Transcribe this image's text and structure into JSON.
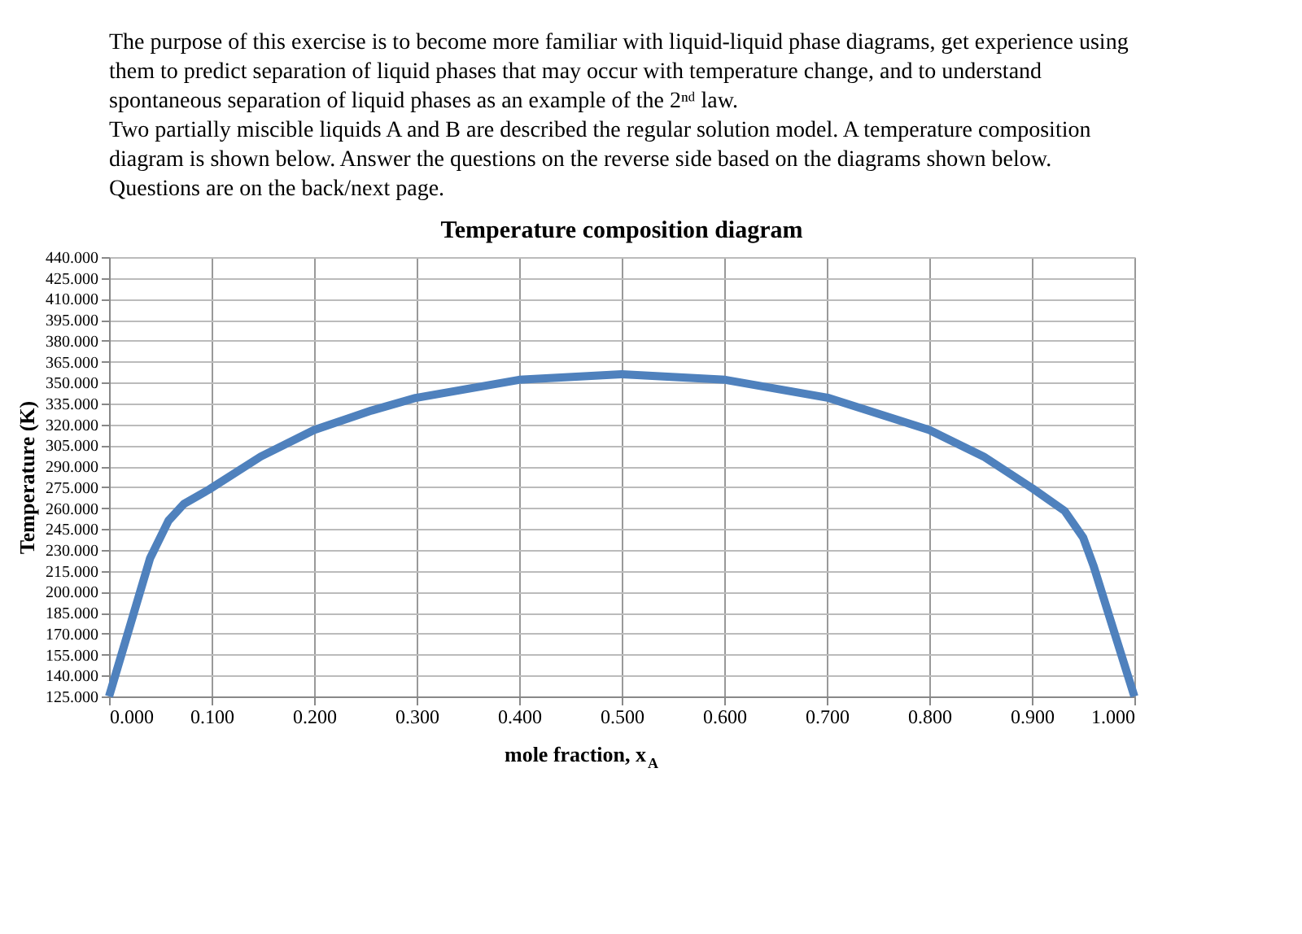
{
  "chart_data": {
    "type": "line",
    "title": "Temperature composition diagram",
    "xlabel": "mole fraction, x$_{A}$",
    "ylabel": "Temperature (K)",
    "annotations": [
      "The purpose of this exercise is to become more familiar with liquid-liquid phase diagrams, get experience using",
      "them to predict separation of liquid phases that may occur with temperature change, and to understand",
      "spontaneous separation of liquid phases as an example of the 2ⁿᵈ law.",
      "Two partially miscible liquids A and B are described the regular solution model.  A temperature composition",
      "diagram is shown below.  Answer the questions on the reverse side based on the diagrams shown below.",
      "Questions are on the back/next page."
    ],
    "x": [
      0.0,
      0.04,
      0.058,
      0.073,
      0.099,
      0.148,
      0.2,
      0.256,
      0.299,
      0.4,
      0.5,
      0.601,
      0.702,
      0.8,
      0.853,
      0.901,
      0.932,
      0.95,
      0.96,
      1.0
    ],
    "series": [
      {
        "color": "#4f81bd",
        "values": [
          125,
          224,
          251,
          263,
          274,
          297,
          316,
          330,
          339,
          352,
          356,
          352,
          339,
          316,
          297,
          274,
          258,
          239,
          219,
          125
        ]
      }
    ],
    "xlim": [
      0,
      1
    ],
    "xticks": [
      {
        "value": 0,
        "label": "0.000"
      },
      {
        "value": 0.1,
        "label": "0.100"
      },
      {
        "value": 0.2,
        "label": "0.200"
      },
      {
        "value": 0.3,
        "label": "0.300"
      },
      {
        "value": 0.4,
        "label": "0.400"
      },
      {
        "value": 0.5,
        "label": "0.500"
      },
      {
        "value": 0.6,
        "label": "0.600"
      },
      {
        "value": 0.7,
        "label": "0.700"
      },
      {
        "value": 0.8,
        "label": "0.800"
      },
      {
        "value": 0.9,
        "label": "0.900"
      },
      {
        "value": 1,
        "label": "1.000"
      }
    ],
    "ylim": [
      125,
      440
    ],
    "yticks": [
      {
        "value": 125,
        "label": "125.000"
      },
      {
        "value": 140,
        "label": "140.000"
      },
      {
        "value": 155,
        "label": "155.000"
      },
      {
        "value": 170,
        "label": "170.000"
      },
      {
        "value": 185,
        "label": "185.000"
      },
      {
        "value": 200,
        "label": "200.000"
      },
      {
        "value": 215,
        "label": "215.000"
      },
      {
        "value": 230,
        "label": "230.000"
      },
      {
        "value": 245,
        "label": "245.000"
      },
      {
        "value": 260,
        "label": "260.000"
      },
      {
        "value": 275,
        "label": "275.000"
      },
      {
        "value": 290,
        "label": "290.000"
      },
      {
        "value": 305,
        "label": "305.000"
      },
      {
        "value": 320,
        "label": "320.000"
      },
      {
        "value": 335,
        "label": "335.000"
      },
      {
        "value": 350,
        "label": "350.000"
      },
      {
        "value": 365,
        "label": "365.000"
      },
      {
        "value": 380,
        "label": "380.000"
      },
      {
        "value": 395,
        "label": "395.000"
      },
      {
        "value": 410,
        "label": "410.000"
      },
      {
        "value": 425,
        "label": "425.000"
      },
      {
        "value": 440,
        "label": "440.000"
      }
    ],
    "grid": true,
    "marker": "none",
    "line_style": "solid"
  }
}
